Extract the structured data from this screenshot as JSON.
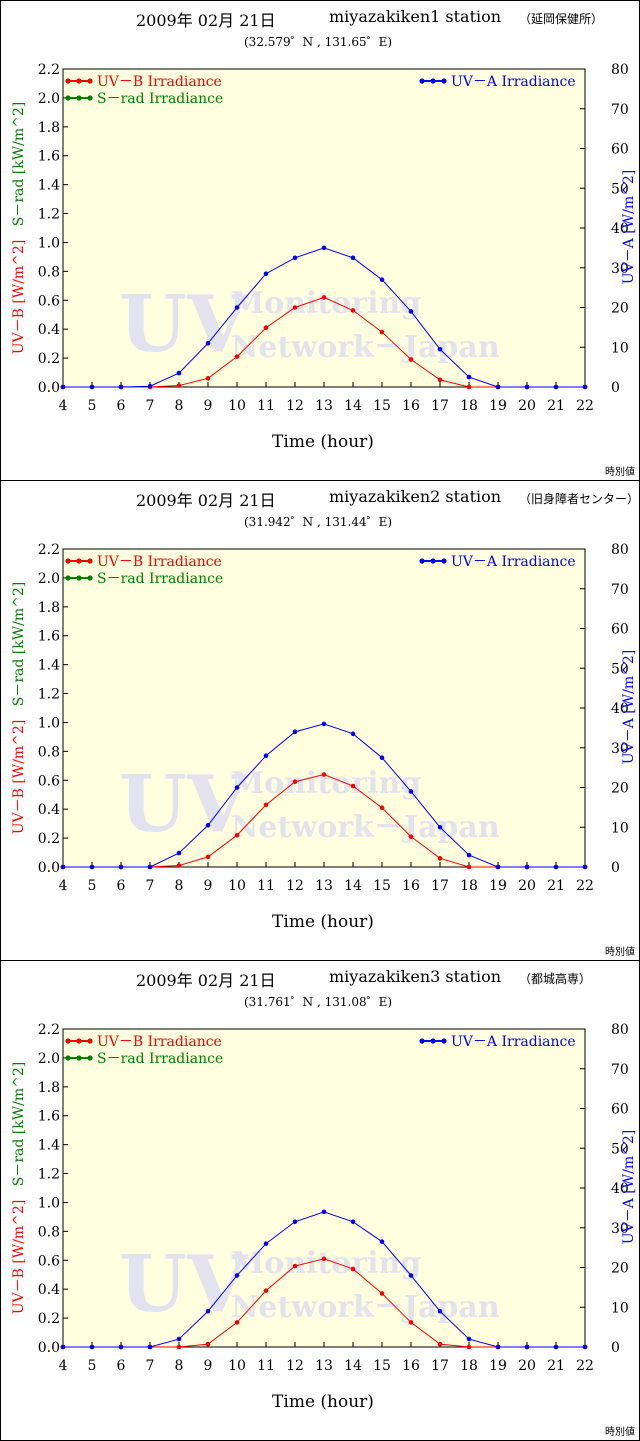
{
  "panels": [
    {
      "date": "2009年 02月 21日",
      "station": "miyazakiken1 station",
      "place": "（延岡保健所）",
      "coords": "(32.579゜N , 131.65゜E)",
      "footer": "時別値"
    },
    {
      "date": "2009年 02月 21日",
      "station": "miyazakiken2 station",
      "place": "（旧身障者センター）",
      "coords": "(31.942゜N , 131.44゜E)",
      "footer": "時別値"
    },
    {
      "date": "2009年 02月 21日",
      "station": "miyazakiken3 station",
      "place": "（都城高専）",
      "coords": "(31.761゜N , 131.08゜E)",
      "footer": "時別値"
    }
  ],
  "colors": {
    "plot_bg": "#ffffe0",
    "uvb": "#ff0000",
    "uva": "#0000ff",
    "srad": "#008000",
    "watermark": "#e3e3f0"
  },
  "watermark": {
    "big": "UV",
    "line1": "Monitoring",
    "line2": "Network－Japan"
  },
  "chart_data": [
    {
      "type": "line",
      "xlabel": "Time (hour)",
      "ylabel_left_uvb": "UV－B [W/m^2]",
      "ylabel_left_srad": "S－rad [kW/m^2]",
      "ylabel_right": "UV－A [W/m^2]",
      "x": [
        4,
        5,
        6,
        7,
        8,
        9,
        10,
        11,
        12,
        13,
        14,
        15,
        16,
        17,
        18,
        19,
        20,
        21,
        22
      ],
      "xlim": [
        4,
        22
      ],
      "ylim_left": [
        0,
        2.2
      ],
      "ylim_right": [
        0,
        80
      ],
      "left_ticks": [
        "0.0",
        "0.2",
        "0.4",
        "0.6",
        "0.8",
        "1.0",
        "1.2",
        "1.4",
        "1.6",
        "1.8",
        "2.0",
        "2.2"
      ],
      "right_ticks": [
        "0",
        "10",
        "20",
        "30",
        "40",
        "50",
        "60",
        "70",
        "80"
      ],
      "legend_left": [
        "UV－B Irradiance",
        "S－rad Irradiance"
      ],
      "legend_right": [
        "UV－A Irradiance"
      ],
      "series": [
        {
          "name": "UV－B Irradiance",
          "axis": "left",
          "values": [
            0,
            0,
            0,
            0,
            0.01,
            0.06,
            0.21,
            0.41,
            0.55,
            0.62,
            0.53,
            0.38,
            0.19,
            0.05,
            0,
            0,
            0,
            0,
            0
          ]
        },
        {
          "name": "UV－A Irradiance",
          "axis": "right",
          "values": [
            0,
            0,
            0,
            0.2,
            3.5,
            11,
            20,
            28.5,
            32.5,
            35,
            32.5,
            27,
            19,
            9.5,
            2.5,
            0,
            0,
            0,
            0
          ]
        }
      ]
    },
    {
      "type": "line",
      "xlabel": "Time (hour)",
      "ylabel_left_uvb": "UV－B [W/m^2]",
      "ylabel_left_srad": "S－rad [kW/m^2]",
      "ylabel_right": "UV－A [W/m^2]",
      "x": [
        4,
        5,
        6,
        7,
        8,
        9,
        10,
        11,
        12,
        13,
        14,
        15,
        16,
        17,
        18,
        19,
        20,
        21,
        22
      ],
      "xlim": [
        4,
        22
      ],
      "ylim_left": [
        0,
        2.2
      ],
      "ylim_right": [
        0,
        80
      ],
      "left_ticks": [
        "0.0",
        "0.2",
        "0.4",
        "0.6",
        "0.8",
        "1.0",
        "1.2",
        "1.4",
        "1.6",
        "1.8",
        "2.0",
        "2.2"
      ],
      "right_ticks": [
        "0",
        "10",
        "20",
        "30",
        "40",
        "50",
        "60",
        "70",
        "80"
      ],
      "legend_left": [
        "UV－B Irradiance",
        "S－rad Irradiance"
      ],
      "legend_right": [
        "UV－A Irradiance"
      ],
      "series": [
        {
          "name": "UV－B Irradiance",
          "axis": "left",
          "values": [
            0,
            0,
            0,
            0,
            0.01,
            0.07,
            0.22,
            0.43,
            0.59,
            0.64,
            0.56,
            0.41,
            0.21,
            0.06,
            0,
            0,
            0,
            0,
            0
          ]
        },
        {
          "name": "UV－A Irradiance",
          "axis": "right",
          "values": [
            0,
            0,
            0,
            0,
            3.5,
            10.5,
            20,
            28,
            34,
            36,
            33.5,
            27.5,
            19,
            10,
            3,
            0,
            0,
            0,
            0
          ]
        }
      ]
    },
    {
      "type": "line",
      "xlabel": "Time (hour)",
      "ylabel_left_uvb": "UV－B [W/m^2]",
      "ylabel_left_srad": "S－rad [kW/m^2]",
      "ylabel_right": "UV－A [W/m^2]",
      "x": [
        4,
        5,
        6,
        7,
        8,
        9,
        10,
        11,
        12,
        13,
        14,
        15,
        16,
        17,
        18,
        19,
        20,
        21,
        22
      ],
      "xlim": [
        4,
        22
      ],
      "ylim_left": [
        0,
        2.2
      ],
      "ylim_right": [
        0,
        80
      ],
      "left_ticks": [
        "0.0",
        "0.2",
        "0.4",
        "0.6",
        "0.8",
        "1.0",
        "1.2",
        "1.4",
        "1.6",
        "1.8",
        "2.0",
        "2.2"
      ],
      "right_ticks": [
        "0",
        "10",
        "20",
        "30",
        "40",
        "50",
        "60",
        "70",
        "80"
      ],
      "legend_left": [
        "UV－B Irradiance",
        "S－rad Irradiance"
      ],
      "legend_right": [
        "UV－A Irradiance"
      ],
      "series": [
        {
          "name": "UV－B Irradiance",
          "axis": "left",
          "values": [
            0,
            0,
            0,
            0,
            0,
            0.02,
            0.17,
            0.39,
            0.56,
            0.61,
            0.54,
            0.37,
            0.17,
            0.02,
            0,
            0,
            0,
            0,
            0
          ]
        },
        {
          "name": "UV－A Irradiance",
          "axis": "right",
          "values": [
            0,
            0,
            0,
            0,
            2,
            9,
            18,
            26,
            31.5,
            34,
            31.5,
            26.5,
            18,
            9,
            2,
            0,
            0,
            0,
            0
          ]
        }
      ]
    }
  ]
}
